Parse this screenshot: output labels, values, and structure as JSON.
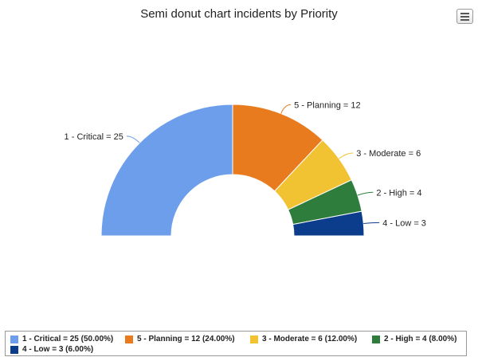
{
  "chart_data": {
    "type": "pie",
    "variant": "semi-donut",
    "title": "Semi donut chart incidents by Priority",
    "slices": [
      {
        "label": "1 - Critical = 25",
        "value": 25,
        "legend": "1 - Critical = 25 (50.00%)",
        "color": "#6d9eeb"
      },
      {
        "label": "5 - Planning = 12",
        "value": 12,
        "legend": "5 - Planning = 12 (24.00%)",
        "color": "#e87b1e"
      },
      {
        "label": "3 - Moderate = 6",
        "value": 6,
        "legend": "3 - Moderate = 6 (12.00%)",
        "color": "#f1c232"
      },
      {
        "label": "2 - High = 4",
        "value": 4,
        "legend": "2 - High = 4 (8.00%)",
        "color": "#2e7d3c"
      },
      {
        "label": "4 - Low = 3",
        "value": 3,
        "legend": "4 - Low = 3 (6.00%)",
        "color": "#0b3d8c"
      }
    ],
    "legend_position": "bottom"
  },
  "menu_icon": "hamburger-menu-icon"
}
